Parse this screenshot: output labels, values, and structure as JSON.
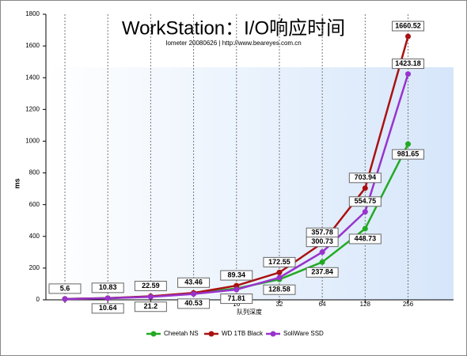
{
  "chart_data": {
    "type": "line",
    "title": "WorkStation：I/O响应时间",
    "subtitle": "Iometer 20080626 | http://www.beareyes.com.cn",
    "x_label": "队列深度",
    "y_label": "ms",
    "categories": [
      null,
      null,
      null,
      null,
      "16",
      "32",
      "64",
      "128",
      "256"
    ],
    "ylim": [
      0,
      1800
    ],
    "yticks": [
      0,
      200,
      400,
      600,
      800,
      1000,
      1200,
      1400,
      1600,
      1800
    ],
    "grid": true,
    "legend": "bottom",
    "series": [
      {
        "name": "Cheetah NS",
        "color": "#22aa22",
        "values": [
          5.5,
          10.64,
          21.2,
          40.53,
          71.81,
          128.58,
          237.84,
          448.73,
          981.65
        ],
        "value_labels": [
          null,
          "10.64",
          "21.2",
          "40.53",
          "71.81",
          "128.58",
          "237.84",
          "448.73",
          "981.65"
        ]
      },
      {
        "name": "WD 1TB Black",
        "color": "#aa1111",
        "values": [
          5.6,
          10.83,
          22.59,
          43.46,
          89.34,
          172.55,
          357.78,
          703.94,
          1660.52
        ],
        "value_labels": [
          "5.6",
          "10.83",
          "22.59",
          "43.46",
          "89.34",
          "172.55",
          "357.78",
          "703.94",
          "1660.52"
        ]
      },
      {
        "name": "SoliWare SSD",
        "color": "#9933cc",
        "values": [
          5,
          10,
          19,
          37,
          65,
          140,
          300.73,
          554.75,
          1423.18
        ],
        "value_labels": [
          null,
          null,
          null,
          null,
          null,
          null,
          "300.73",
          "554.75",
          "1423.18"
        ]
      }
    ]
  }
}
